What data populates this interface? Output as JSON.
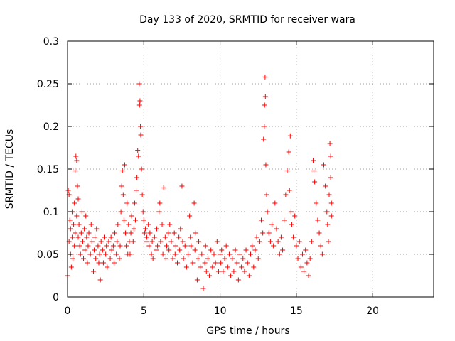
{
  "chart_data": {
    "type": "scatter",
    "title": "Day 133 of 2020, SRMTID for receiver wara",
    "xlabel": "GPS time / hours",
    "ylabel": "SRMTID / TECUs",
    "xlim": [
      0,
      24
    ],
    "ylim": [
      0,
      0.3
    ],
    "xticks": [
      0,
      5,
      10,
      15,
      20
    ],
    "xtick_labels": [
      "0",
      "5",
      "10",
      "15",
      "20"
    ],
    "yticks": [
      0,
      0.05,
      0.1,
      0.15,
      0.2,
      0.25,
      0.3
    ],
    "ytick_labels": [
      "0",
      "0.05",
      "0.1",
      "0.15",
      "0.2",
      "0.25",
      "0.3"
    ],
    "grid": true,
    "marker": "+",
    "series": [
      {
        "name": "SRMTID",
        "color": "#ff0000",
        "points": [
          [
            0.0,
            0.025
          ],
          [
            0.05,
            0.125
          ],
          [
            0.1,
            0.12
          ],
          [
            0.1,
            0.065
          ],
          [
            0.15,
            0.09
          ],
          [
            0.2,
            0.05
          ],
          [
            0.2,
            0.08
          ],
          [
            0.25,
            0.035
          ],
          [
            0.3,
            0.1
          ],
          [
            0.3,
            0.07
          ],
          [
            0.35,
            0.045
          ],
          [
            0.4,
            0.085
          ],
          [
            0.45,
            0.11
          ],
          [
            0.45,
            0.06
          ],
          [
            0.5,
            0.148
          ],
          [
            0.5,
            0.075
          ],
          [
            0.55,
            0.165
          ],
          [
            0.6,
            0.16
          ],
          [
            0.6,
            0.095
          ],
          [
            0.65,
            0.13
          ],
          [
            0.7,
            0.115
          ],
          [
            0.7,
            0.07
          ],
          [
            0.75,
            0.085
          ],
          [
            0.8,
            0.06
          ],
          [
            0.85,
            0.05
          ],
          [
            0.9,
            0.075
          ],
          [
            0.95,
            0.1
          ],
          [
            1.0,
            0.065
          ],
          [
            1.05,
            0.045
          ],
          [
            1.1,
            0.08
          ],
          [
            1.15,
            0.055
          ],
          [
            1.2,
            0.095
          ],
          [
            1.25,
            0.07
          ],
          [
            1.3,
            0.04
          ],
          [
            1.35,
            0.06
          ],
          [
            1.4,
            0.075
          ],
          [
            1.5,
            0.05
          ],
          [
            1.55,
            0.085
          ],
          [
            1.6,
            0.065
          ],
          [
            1.7,
            0.03
          ],
          [
            1.75,
            0.055
          ],
          [
            1.8,
            0.07
          ],
          [
            1.85,
            0.045
          ],
          [
            1.9,
            0.08
          ],
          [
            2.0,
            0.06
          ],
          [
            2.05,
            0.04
          ],
          [
            2.1,
            0.05
          ],
          [
            2.15,
            0.02
          ],
          [
            2.2,
            0.065
          ],
          [
            2.3,
            0.055
          ],
          [
            2.35,
            0.04
          ],
          [
            2.4,
            0.07
          ],
          [
            2.5,
            0.05
          ],
          [
            2.55,
            0.06
          ],
          [
            2.6,
            0.035
          ],
          [
            2.7,
            0.065
          ],
          [
            2.8,
            0.045
          ],
          [
            2.85,
            0.07
          ],
          [
            2.9,
            0.055
          ],
          [
            3.0,
            0.06
          ],
          [
            3.05,
            0.04
          ],
          [
            3.1,
            0.075
          ],
          [
            3.2,
            0.05
          ],
          [
            3.25,
            0.065
          ],
          [
            3.3,
            0.085
          ],
          [
            3.4,
            0.045
          ],
          [
            3.45,
            0.06
          ],
          [
            3.5,
            0.1
          ],
          [
            3.55,
            0.13
          ],
          [
            3.6,
            0.148
          ],
          [
            3.65,
            0.12
          ],
          [
            3.7,
            0.09
          ],
          [
            3.75,
            0.155
          ],
          [
            3.8,
            0.075
          ],
          [
            3.85,
            0.06
          ],
          [
            3.9,
            0.11
          ],
          [
            3.95,
            0.05
          ],
          [
            4.0,
            0.085
          ],
          [
            4.05,
            0.065
          ],
          [
            4.1,
            0.05
          ],
          [
            4.15,
            0.075
          ],
          [
            4.2,
            0.095
          ],
          [
            4.3,
            0.065
          ],
          [
            4.35,
            0.08
          ],
          [
            4.4,
            0.11
          ],
          [
            4.45,
            0.09
          ],
          [
            4.5,
            0.125
          ],
          [
            4.55,
            0.14
          ],
          [
            4.6,
            0.172
          ],
          [
            4.65,
            0.165
          ],
          [
            4.7,
            0.25
          ],
          [
            4.72,
            0.225
          ],
          [
            4.75,
            0.23
          ],
          [
            4.78,
            0.2
          ],
          [
            4.8,
            0.19
          ],
          [
            4.85,
            0.15
          ],
          [
            4.9,
            0.12
          ],
          [
            4.95,
            0.1
          ],
          [
            5.0,
            0.09
          ],
          [
            5.05,
            0.075
          ],
          [
            5.1,
            0.08
          ],
          [
            5.15,
            0.065
          ],
          [
            5.2,
            0.07
          ],
          [
            5.3,
            0.085
          ],
          [
            5.35,
            0.06
          ],
          [
            5.4,
            0.075
          ],
          [
            5.5,
            0.05
          ],
          [
            5.55,
            0.065
          ],
          [
            5.6,
            0.045
          ],
          [
            5.7,
            0.07
          ],
          [
            5.8,
            0.055
          ],
          [
            5.85,
            0.08
          ],
          [
            5.9,
            0.06
          ],
          [
            6.0,
            0.1
          ],
          [
            6.05,
            0.11
          ],
          [
            6.1,
            0.065
          ],
          [
            6.2,
            0.085
          ],
          [
            6.25,
            0.05
          ],
          [
            6.3,
            0.128
          ],
          [
            6.4,
            0.07
          ],
          [
            6.45,
            0.045
          ],
          [
            6.5,
            0.06
          ],
          [
            6.6,
            0.075
          ],
          [
            6.65,
            0.055
          ],
          [
            6.7,
            0.085
          ],
          [
            6.8,
            0.065
          ],
          [
            6.9,
            0.045
          ],
          [
            7.0,
            0.075
          ],
          [
            7.05,
            0.05
          ],
          [
            7.1,
            0.06
          ],
          [
            7.2,
            0.04
          ],
          [
            7.3,
            0.07
          ],
          [
            7.35,
            0.055
          ],
          [
            7.4,
            0.08
          ],
          [
            7.5,
            0.13
          ],
          [
            7.55,
            0.065
          ],
          [
            7.6,
            0.045
          ],
          [
            7.7,
            0.06
          ],
          [
            7.8,
            0.035
          ],
          [
            7.9,
            0.05
          ],
          [
            8.0,
            0.095
          ],
          [
            8.05,
            0.07
          ],
          [
            8.1,
            0.06
          ],
          [
            8.2,
            0.04
          ],
          [
            8.3,
            0.11
          ],
          [
            8.35,
            0.055
          ],
          [
            8.4,
            0.075
          ],
          [
            8.5,
            0.02
          ],
          [
            8.55,
            0.045
          ],
          [
            8.6,
            0.065
          ],
          [
            8.7,
            0.035
          ],
          [
            8.8,
            0.05
          ],
          [
            8.9,
            0.01
          ],
          [
            9.0,
            0.04
          ],
          [
            9.05,
            0.06
          ],
          [
            9.1,
            0.03
          ],
          [
            9.2,
            0.045
          ],
          [
            9.3,
            0.025
          ],
          [
            9.4,
            0.055
          ],
          [
            9.5,
            0.035
          ],
          [
            9.6,
            0.05
          ],
          [
            9.7,
            0.04
          ],
          [
            9.8,
            0.065
          ],
          [
            9.9,
            0.03
          ],
          [
            10.0,
            0.05
          ],
          [
            10.05,
            0.04
          ],
          [
            10.1,
            0.055
          ],
          [
            10.2,
            0.03
          ],
          [
            10.3,
            0.045
          ],
          [
            10.4,
            0.06
          ],
          [
            10.5,
            0.035
          ],
          [
            10.6,
            0.05
          ],
          [
            10.7,
            0.025
          ],
          [
            10.8,
            0.045
          ],
          [
            10.9,
            0.03
          ],
          [
            11.0,
            0.055
          ],
          [
            11.1,
            0.04
          ],
          [
            11.2,
            0.02
          ],
          [
            11.3,
            0.05
          ],
          [
            11.4,
            0.035
          ],
          [
            11.5,
            0.045
          ],
          [
            11.6,
            0.03
          ],
          [
            11.7,
            0.055
          ],
          [
            11.8,
            0.04
          ],
          [
            11.9,
            0.025
          ],
          [
            12.0,
            0.05
          ],
          [
            12.1,
            0.06
          ],
          [
            12.2,
            0.035
          ],
          [
            12.3,
            0.055
          ],
          [
            12.4,
            0.07
          ],
          [
            12.5,
            0.045
          ],
          [
            12.6,
            0.065
          ],
          [
            12.7,
            0.09
          ],
          [
            12.8,
            0.075
          ],
          [
            12.85,
            0.185
          ],
          [
            12.9,
            0.2
          ],
          [
            12.92,
            0.225
          ],
          [
            12.95,
            0.258
          ],
          [
            12.97,
            0.235
          ],
          [
            13.0,
            0.155
          ],
          [
            13.05,
            0.12
          ],
          [
            13.1,
            0.1
          ],
          [
            13.2,
            0.075
          ],
          [
            13.3,
            0.065
          ],
          [
            13.4,
            0.085
          ],
          [
            13.5,
            0.06
          ],
          [
            13.6,
            0.11
          ],
          [
            13.7,
            0.08
          ],
          [
            13.8,
            0.065
          ],
          [
            13.9,
            0.05
          ],
          [
            14.0,
            0.07
          ],
          [
            14.1,
            0.055
          ],
          [
            14.2,
            0.09
          ],
          [
            14.3,
            0.12
          ],
          [
            14.4,
            0.148
          ],
          [
            14.5,
            0.17
          ],
          [
            14.55,
            0.125
          ],
          [
            14.6,
            0.189
          ],
          [
            14.65,
            0.1
          ],
          [
            14.7,
            0.085
          ],
          [
            14.8,
            0.07
          ],
          [
            14.9,
            0.095
          ],
          [
            15.0,
            0.06
          ],
          [
            15.1,
            0.045
          ],
          [
            15.2,
            0.065
          ],
          [
            15.3,
            0.035
          ],
          [
            15.4,
            0.05
          ],
          [
            15.5,
            0.03
          ],
          [
            15.6,
            0.055
          ],
          [
            15.7,
            0.04
          ],
          [
            15.8,
            0.025
          ],
          [
            15.9,
            0.045
          ],
          [
            16.0,
            0.065
          ],
          [
            16.1,
            0.16
          ],
          [
            16.15,
            0.148
          ],
          [
            16.2,
            0.135
          ],
          [
            16.3,
            0.11
          ],
          [
            16.4,
            0.09
          ],
          [
            16.5,
            0.075
          ],
          [
            16.6,
            0.06
          ],
          [
            16.7,
            0.05
          ],
          [
            16.8,
            0.155
          ],
          [
            16.9,
            0.13
          ],
          [
            17.0,
            0.1
          ],
          [
            17.05,
            0.085
          ],
          [
            17.1,
            0.065
          ],
          [
            17.15,
            0.12
          ],
          [
            17.2,
            0.18
          ],
          [
            17.25,
            0.165
          ],
          [
            17.3,
            0.11
          ],
          [
            17.3,
            0.095
          ],
          [
            17.25,
            0.14
          ]
        ]
      }
    ]
  }
}
